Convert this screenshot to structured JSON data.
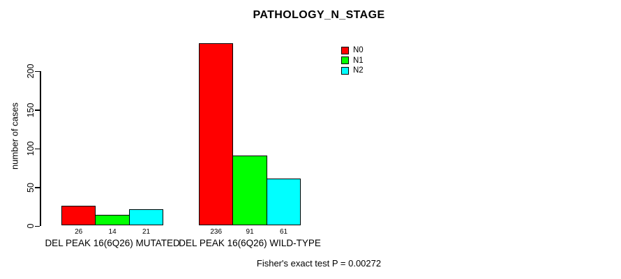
{
  "title": "PATHOLOGY_N_STAGE",
  "footer_note": "Fisher's exact test P = 0.00272",
  "y_axis": {
    "label": "number of cases",
    "tick_labels": [
      "0",
      "50",
      "100",
      "150",
      "200"
    ]
  },
  "legend": {
    "items": [
      {
        "label": "N0",
        "color": "#ff0000"
      },
      {
        "label": "N1",
        "color": "#00ff00"
      },
      {
        "label": "N2",
        "color": "#00ffff"
      }
    ]
  },
  "chart_data": {
    "type": "bar",
    "title": "PATHOLOGY_N_STAGE",
    "xlabel": "",
    "ylabel": "number of cases",
    "ylim": [
      0,
      200
    ],
    "yticks": [
      0,
      50,
      100,
      150,
      200
    ],
    "grid": false,
    "legend_position": "top-right",
    "categories": [
      "DEL PEAK 16(6Q26) MUTATED",
      "DEL PEAK 16(6Q26) WILD-TYPE"
    ],
    "series": [
      {
        "name": "N0",
        "color": "#ff0000",
        "values": [
          26,
          236
        ]
      },
      {
        "name": "N1",
        "color": "#00ff00",
        "values": [
          14,
          91
        ]
      },
      {
        "name": "N2",
        "color": "#00ffff",
        "values": [
          21,
          61
        ]
      }
    ],
    "bar_value_labels": [
      [
        26,
        14,
        21
      ],
      [
        236,
        91,
        61
      ]
    ],
    "annotation": "Fisher's exact test P = 0.00272"
  }
}
